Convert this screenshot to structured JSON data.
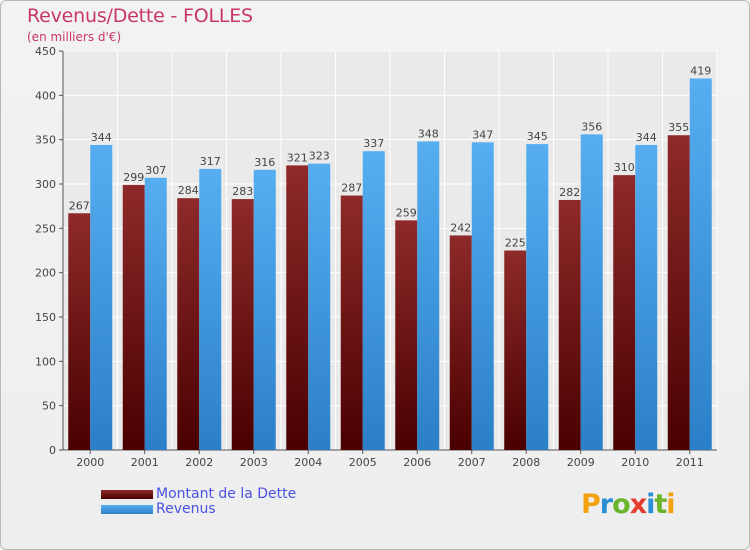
{
  "header": {
    "title": "Revenus/Dette - FOLLES",
    "subtitle": "(en milliers d'€)"
  },
  "chart_data": {
    "type": "bar",
    "title": "Revenus/Dette - FOLLES",
    "ylabel": "(en milliers d'€)",
    "xlabel": "",
    "ylim": [
      0,
      450
    ],
    "yticks": [
      0,
      50,
      100,
      150,
      200,
      250,
      300,
      350,
      400,
      450
    ],
    "grid": true,
    "legend_position": "bottom-left",
    "categories": [
      "2000",
      "2001",
      "2002",
      "2003",
      "2004",
      "2005",
      "2006",
      "2007",
      "2008",
      "2009",
      "2010",
      "2011"
    ],
    "series": [
      {
        "name": "Montant de la Dette",
        "color": "#7a1515",
        "values": [
          267,
          299,
          284,
          283,
          321,
          287,
          259,
          242,
          225,
          282,
          310,
          355
        ]
      },
      {
        "name": "Revenus",
        "color": "#3f9be3",
        "values": [
          344,
          307,
          317,
          316,
          323,
          337,
          348,
          347,
          345,
          356,
          344,
          419
        ]
      }
    ]
  },
  "legend": {
    "items": [
      {
        "label": "Montant de la Dette",
        "color": "#7a1515"
      },
      {
        "label": "Revenus",
        "color": "#3f9be3"
      }
    ]
  },
  "logo": {
    "letters": [
      "P",
      "r",
      "o",
      "x",
      "i",
      "t",
      "i"
    ],
    "colors": [
      "#f2a20f",
      "#2c8fd6",
      "#6bb52a",
      "#e53b2f",
      "#2c8fd6",
      "#6bb52a",
      "#f2a20f"
    ]
  }
}
